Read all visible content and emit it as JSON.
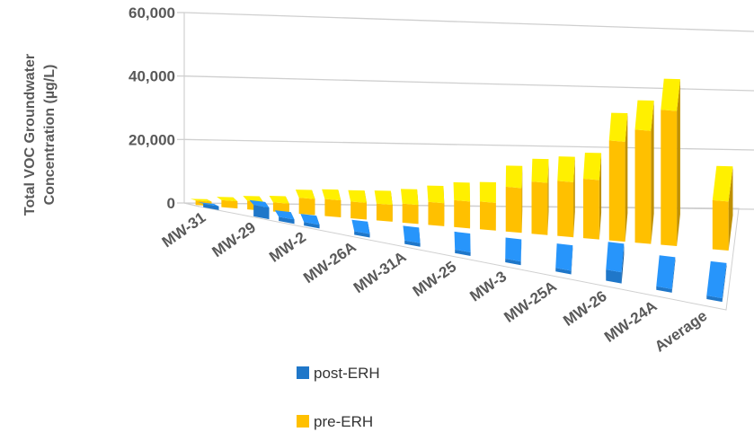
{
  "chart_data": {
    "type": "bar",
    "title": "",
    "xlabel": "",
    "ylabel_line1": "Total VOC Groundwater",
    "ylabel_line2": "Concentration (µg/L)",
    "ylim": [
      0,
      60000
    ],
    "yticks": [
      0,
      20000,
      40000,
      60000
    ],
    "ytick_labels": [
      "0",
      "20,000",
      "40,000",
      "60,000"
    ],
    "categories": [
      "MW-31",
      "",
      "MW-29",
      "",
      "MW-2",
      "",
      "MW-26A",
      "",
      "MW-31A",
      "",
      "MW-25",
      "",
      "MW-3",
      "",
      "MW-25A",
      "",
      "MW-26",
      "",
      "MW-24A",
      "",
      "Average"
    ],
    "shown_category_labels": [
      "MW-31",
      "MW-29",
      "MW-2",
      "MW-26A",
      "MW-31A",
      "MW-25",
      "MW-3",
      "MW-25A",
      "MW-26",
      "MW-24A",
      "Average"
    ],
    "series": [
      {
        "name": "post-ERH",
        "color": "#1F77C9",
        "values": [
          0,
          0,
          2500,
          200,
          0,
          0,
          0,
          0,
          0,
          0,
          0,
          0,
          0,
          0,
          0,
          0,
          2500,
          0,
          0,
          0,
          0
        ]
      },
      {
        "name": "pre-ERH",
        "color": "#FFC000",
        "values": [
          300,
          1100,
          1600,
          1800,
          4000,
          4300,
          4200,
          4300,
          5000,
          6300,
          7600,
          7900,
          13500,
          16000,
          17000,
          18500,
          32000,
          36500,
          44000,
          0,
          15300
        ]
      }
    ],
    "legend_position": "bottom-center",
    "grid": true
  }
}
